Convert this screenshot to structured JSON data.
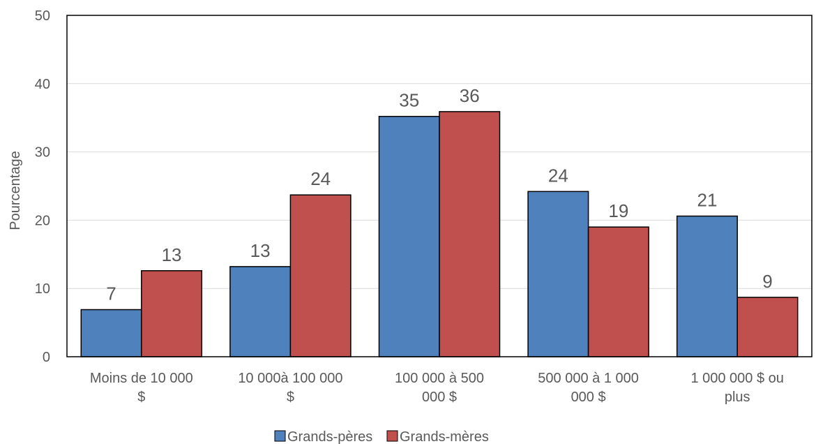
{
  "chart_data": {
    "type": "bar",
    "title": "",
    "xlabel": "",
    "ylabel": "Pourcentage",
    "ylim": [
      0,
      50
    ],
    "yticks": [
      0,
      10,
      20,
      30,
      40,
      50
    ],
    "grid": true,
    "legend_position": "bottom",
    "categories": [
      [
        "Moins de 10 000",
        "$"
      ],
      [
        "10 000à 100 000",
        "$"
      ],
      [
        "100 000 à 500",
        "000 $"
      ],
      [
        "500 000 à 1 000",
        "000 $"
      ],
      [
        "1 000 000 $ ou",
        "plus"
      ]
    ],
    "series": [
      {
        "name": "Grands-pères",
        "color": "#4f81bd",
        "values": [
          6.9,
          13.2,
          35.2,
          24.2,
          20.6
        ],
        "labels": [
          "7",
          "13",
          "35",
          "24",
          "21"
        ]
      },
      {
        "name": "Grands-mères",
        "color": "#c0504d",
        "values": [
          12.6,
          23.7,
          35.9,
          19.0,
          8.7
        ],
        "labels": [
          "13",
          "24",
          "36",
          "19",
          "9"
        ]
      }
    ]
  }
}
